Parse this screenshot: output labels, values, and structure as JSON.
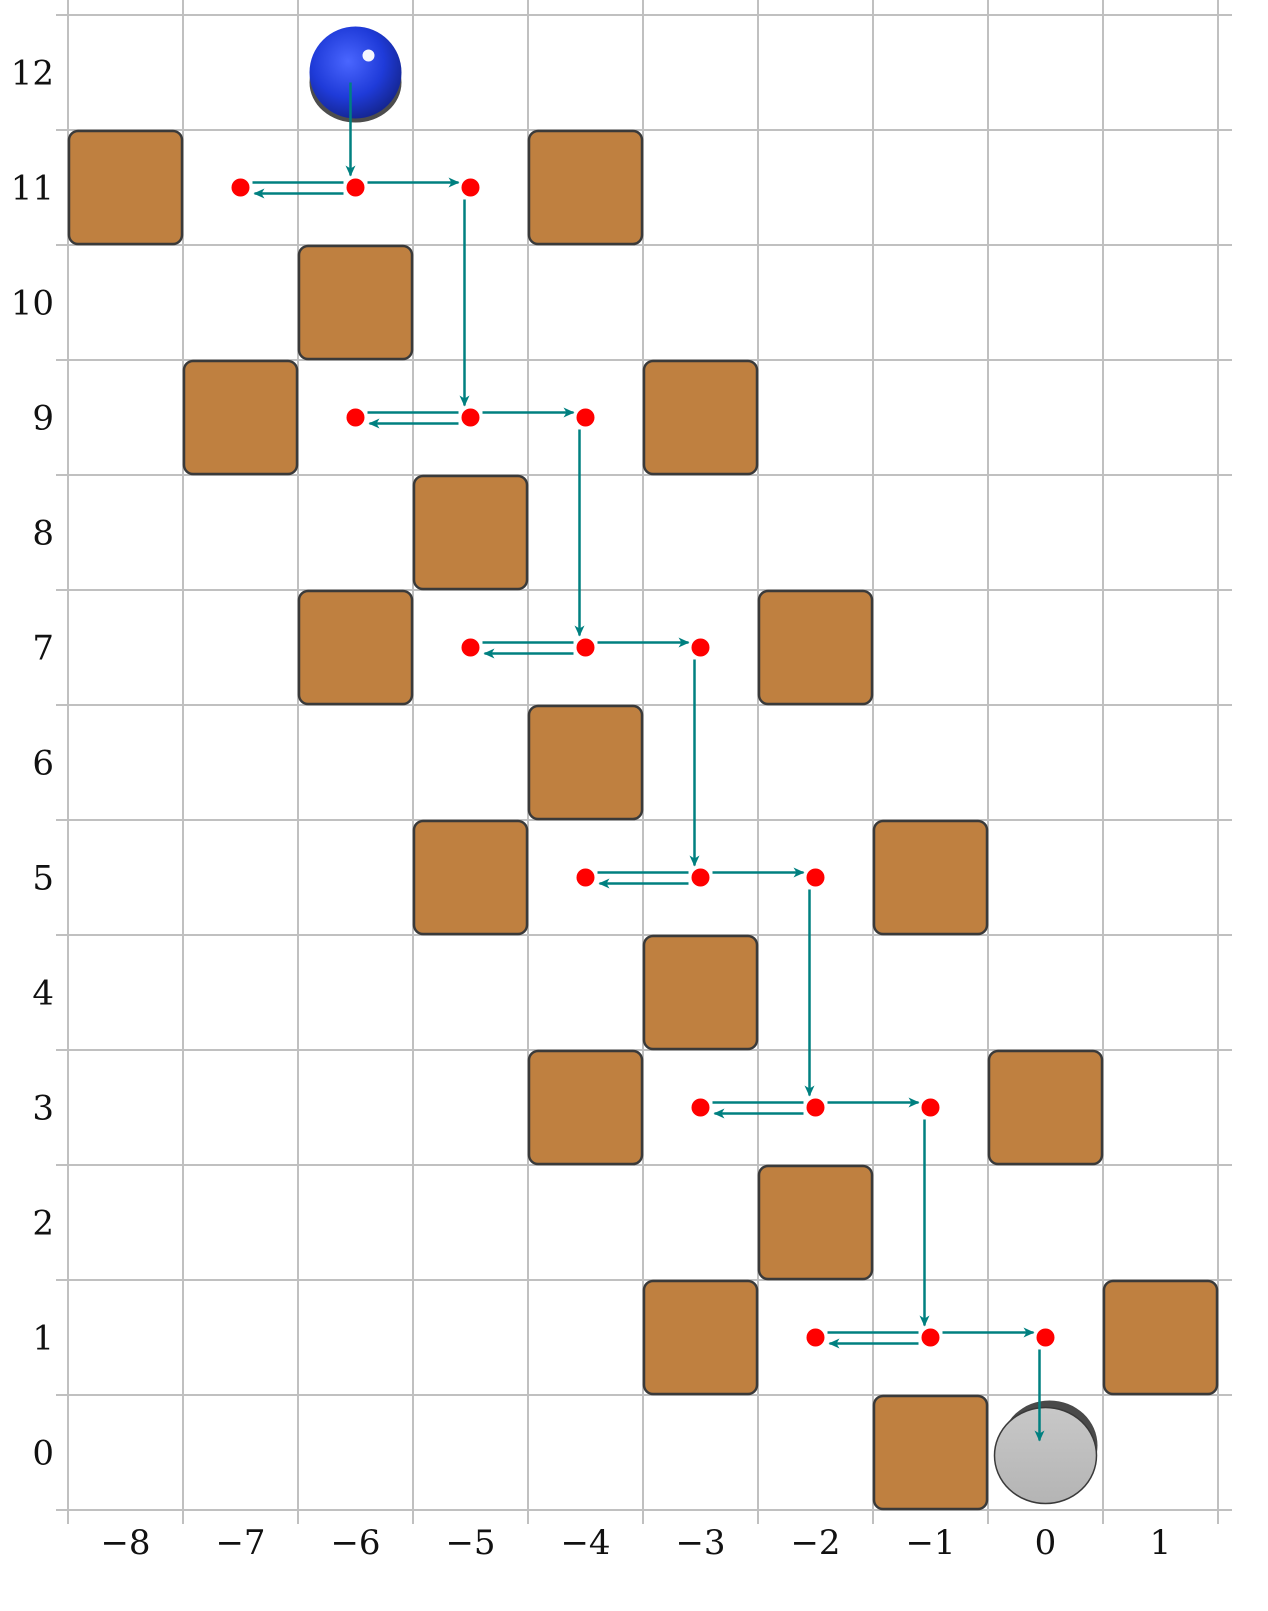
{
  "board": {
    "x_ticks": [
      "−8",
      "−7",
      "−6",
      "−5",
      "−4",
      "−3",
      "−2",
      "−1",
      "0",
      "1"
    ],
    "y_ticks": [
      "0",
      "1",
      "2",
      "3",
      "4",
      "5",
      "6",
      "7",
      "8",
      "9",
      "10",
      "11",
      "12"
    ],
    "x_range": [
      -8,
      1
    ],
    "y_range": [
      0,
      12
    ],
    "grid": true
  },
  "colors": {
    "crate": "#bf8040",
    "crate_border": "#3a3a3a",
    "arrow": "#008080",
    "dot": "#ff0000",
    "ball": "#1f3bd9",
    "hole": "#bdbdbd",
    "grid": "#c0c0c0"
  },
  "start_ball": {
    "x": -6,
    "y": 12,
    "icon": "blue-ball"
  },
  "goal_hole": {
    "x": 0,
    "y": 0,
    "icon": "gray-hole"
  },
  "crates": [
    {
      "x": -8,
      "y": 11
    },
    {
      "x": -4,
      "y": 11
    },
    {
      "x": -6,
      "y": 10
    },
    {
      "x": -7,
      "y": 9
    },
    {
      "x": -3,
      "y": 9
    },
    {
      "x": -5,
      "y": 8
    },
    {
      "x": -6,
      "y": 7
    },
    {
      "x": -2,
      "y": 7
    },
    {
      "x": -4,
      "y": 6
    },
    {
      "x": -5,
      "y": 5
    },
    {
      "x": -1,
      "y": 5
    },
    {
      "x": -3,
      "y": 4
    },
    {
      "x": -4,
      "y": 3
    },
    {
      "x": 0,
      "y": 3
    },
    {
      "x": -2,
      "y": 2
    },
    {
      "x": -3,
      "y": 1
    },
    {
      "x": 1,
      "y": 1
    },
    {
      "x": -1,
      "y": 0
    }
  ],
  "path_dots": [
    {
      "x": -7,
      "y": 11
    },
    {
      "x": -6,
      "y": 11
    },
    {
      "x": -5,
      "y": 11
    },
    {
      "x": -6,
      "y": 9
    },
    {
      "x": -5,
      "y": 9
    },
    {
      "x": -4,
      "y": 9
    },
    {
      "x": -5,
      "y": 7
    },
    {
      "x": -4,
      "y": 7
    },
    {
      "x": -3,
      "y": 7
    },
    {
      "x": -4,
      "y": 5
    },
    {
      "x": -3,
      "y": 5
    },
    {
      "x": -2,
      "y": 5
    },
    {
      "x": -3,
      "y": 3
    },
    {
      "x": -2,
      "y": 3
    },
    {
      "x": -1,
      "y": 3
    },
    {
      "x": -2,
      "y": 1
    },
    {
      "x": -1,
      "y": 1
    },
    {
      "x": 0,
      "y": 1
    }
  ],
  "moves": [
    {
      "type": "down",
      "from": [
        -6,
        12
      ],
      "to": [
        -6,
        11
      ]
    },
    {
      "type": "probe",
      "from": [
        -6,
        11
      ],
      "to": [
        -7,
        11
      ]
    },
    {
      "type": "right",
      "from": [
        -6,
        11
      ],
      "to": [
        -5,
        11
      ]
    },
    {
      "type": "down",
      "from": [
        -5,
        11
      ],
      "to": [
        -5,
        9
      ]
    },
    {
      "type": "probe",
      "from": [
        -5,
        9
      ],
      "to": [
        -6,
        9
      ]
    },
    {
      "type": "right",
      "from": [
        -5,
        9
      ],
      "to": [
        -4,
        9
      ]
    },
    {
      "type": "down",
      "from": [
        -4,
        9
      ],
      "to": [
        -4,
        7
      ]
    },
    {
      "type": "probe",
      "from": [
        -4,
        7
      ],
      "to": [
        -5,
        7
      ]
    },
    {
      "type": "right",
      "from": [
        -4,
        7
      ],
      "to": [
        -3,
        7
      ]
    },
    {
      "type": "down",
      "from": [
        -3,
        7
      ],
      "to": [
        -3,
        5
      ]
    },
    {
      "type": "probe",
      "from": [
        -3,
        5
      ],
      "to": [
        -4,
        5
      ]
    },
    {
      "type": "right",
      "from": [
        -3,
        5
      ],
      "to": [
        -2,
        5
      ]
    },
    {
      "type": "down",
      "from": [
        -2,
        5
      ],
      "to": [
        -2,
        3
      ]
    },
    {
      "type": "probe",
      "from": [
        -2,
        3
      ],
      "to": [
        -3,
        3
      ]
    },
    {
      "type": "right",
      "from": [
        -2,
        3
      ],
      "to": [
        -1,
        3
      ]
    },
    {
      "type": "down",
      "from": [
        -1,
        3
      ],
      "to": [
        -1,
        1
      ]
    },
    {
      "type": "probe",
      "from": [
        -1,
        1
      ],
      "to": [
        -2,
        1
      ]
    },
    {
      "type": "right",
      "from": [
        -1,
        1
      ],
      "to": [
        0,
        1
      ]
    },
    {
      "type": "down",
      "from": [
        0,
        1
      ],
      "to": [
        0,
        0
      ]
    }
  ]
}
